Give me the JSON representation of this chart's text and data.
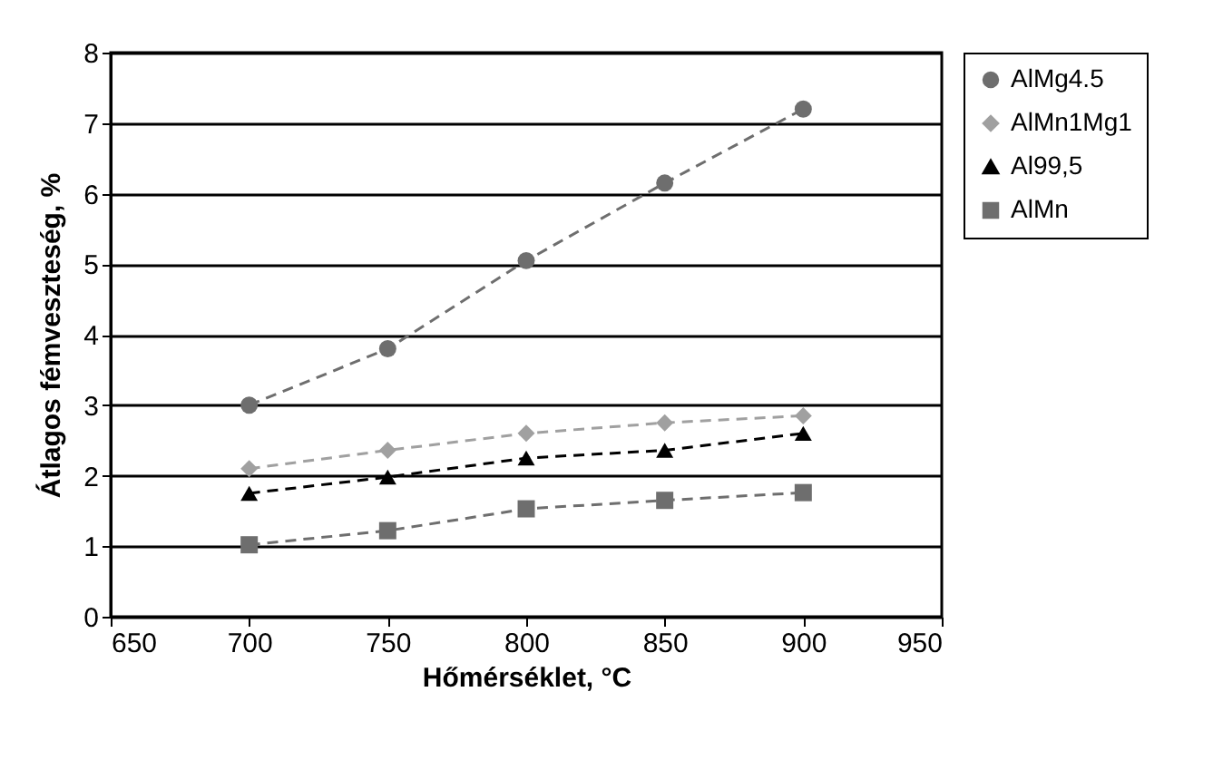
{
  "chart_data": {
    "type": "line",
    "xlabel": "Hőmérséklet, °C",
    "ylabel": "Átlagos fémveszteség, %",
    "x": [
      700,
      750,
      800,
      850,
      900
    ],
    "series": [
      {
        "name": "AlMg4.5",
        "color": "#6e6e6e",
        "marker": "circle",
        "values": [
          3.0,
          3.8,
          5.05,
          6.15,
          7.2
        ]
      },
      {
        "name": "AlMn1Mg1",
        "color": "#a0a0a0",
        "marker": "diamond",
        "values": [
          2.1,
          2.36,
          2.6,
          2.75,
          2.85
        ]
      },
      {
        "name": "Al99,5",
        "color": "#000000",
        "marker": "triangle",
        "values": [
          1.75,
          1.98,
          2.25,
          2.36,
          2.6
        ]
      },
      {
        "name": "AlMn",
        "color": "#6e6e6e",
        "marker": "square",
        "values": [
          1.02,
          1.22,
          1.53,
          1.65,
          1.76
        ]
      }
    ],
    "xlim": [
      650,
      950
    ],
    "xticks": [
      650,
      700,
      750,
      800,
      850,
      900,
      950
    ],
    "ylim": [
      0,
      8
    ],
    "yticks": [
      0,
      1,
      2,
      3,
      4,
      5,
      6,
      7,
      8
    ],
    "grid": "y",
    "legend": "right",
    "line_style": "dashed"
  }
}
